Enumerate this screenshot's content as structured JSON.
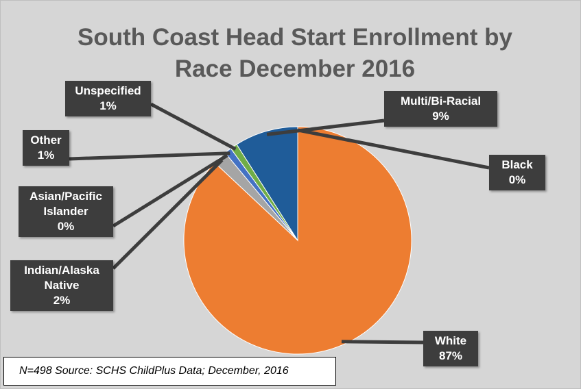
{
  "chart_data": {
    "type": "pie",
    "title": "South Coast Head Start Enrollment by Race December 2016",
    "categories": [
      "Black",
      "White",
      "Indian/Alaska Native",
      "Asian/Pacific Islander",
      "Other",
      "Unspecified",
      "Multi/Bi-Racial"
    ],
    "values": [
      0,
      87,
      2,
      0,
      1,
      1,
      9
    ],
    "value_labels": [
      "0%",
      "87%",
      "2%",
      "0%",
      "1%",
      "1%",
      "9%"
    ],
    "colors": [
      "#264478",
      "#ed7d31",
      "#a5a5a5",
      "#ffc000",
      "#4472c4",
      "#70ad47",
      "#1f5c99"
    ],
    "note": "N=498   Source: SCHS ChildPlus Data; December, 2016"
  }
}
